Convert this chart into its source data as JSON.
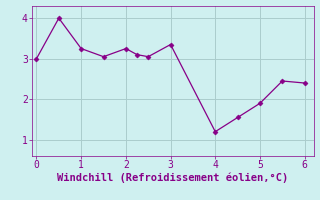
{
  "x": [
    0,
    0.5,
    1.0,
    1.5,
    2.0,
    2.25,
    2.5,
    3.0,
    4.0,
    4.5,
    5.0,
    5.5,
    6.0
  ],
  "y": [
    3.0,
    4.0,
    3.25,
    3.05,
    3.25,
    3.1,
    3.05,
    3.35,
    1.2,
    1.55,
    1.9,
    2.45,
    2.4
  ],
  "line_color": "#880088",
  "marker": "D",
  "marker_size": 2.5,
  "background_color": "#cff0f0",
  "grid_color": "#aacccc",
  "xlabel": "Windchill (Refroidissement éolien,°C)",
  "xlabel_color": "#880088",
  "tick_color": "#880088",
  "xlim": [
    -0.1,
    6.2
  ],
  "ylim": [
    0.6,
    4.3
  ],
  "xticks": [
    0,
    1,
    2,
    3,
    4,
    5,
    6
  ],
  "yticks": [
    1,
    2,
    3,
    4
  ],
  "font_family": "monospace",
  "tick_fontsize": 7,
  "xlabel_fontsize": 7.5
}
